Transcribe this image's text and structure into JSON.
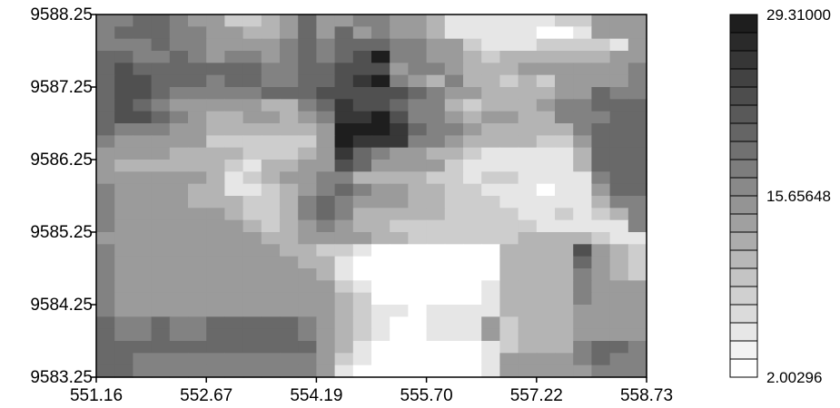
{
  "chart_data": {
    "type": "heatmap",
    "title": "",
    "xlabel": "",
    "ylabel": "",
    "x_ticks": [
      "551.16",
      "552.67",
      "554.19",
      "555.70",
      "557.22",
      "558.73"
    ],
    "y_ticks": [
      "9588.25",
      "9587.25",
      "9586.25",
      "9585.25",
      "9584.25",
      "9583.25"
    ],
    "xlim": [
      551.16,
      558.73
    ],
    "ylim": [
      9583.25,
      9588.25
    ],
    "colorbar": {
      "labels": [
        "29.31000",
        "15.65648",
        "2.00296"
      ],
      "min": 2.00296,
      "max": 29.31,
      "levels": 20,
      "colors": {
        "low": "#ffffff",
        "high": "#1e1e1e"
      }
    },
    "grid_note": "rows listed top to bottom (north to south), values are 0-9 relative intensity levels (0 = min, 9 = max)",
    "cells": [
      [
        5,
        5,
        6,
        6,
        5,
        4,
        4,
        2,
        2,
        3,
        4,
        6,
        4,
        4,
        5,
        5,
        4,
        4,
        3,
        1,
        1,
        1,
        1,
        1,
        1,
        2,
        2,
        4,
        4,
        4
      ],
      [
        5,
        6,
        6,
        6,
        5,
        5,
        4,
        4,
        3,
        3,
        4,
        6,
        4,
        6,
        4,
        5,
        4,
        4,
        3,
        1,
        1,
        1,
        1,
        1,
        0,
        0,
        1,
        4,
        4,
        4
      ],
      [
        5,
        5,
        5,
        6,
        5,
        5,
        4,
        4,
        4,
        4,
        5,
        6,
        5,
        6,
        6,
        6,
        5,
        5,
        4,
        4,
        2,
        1,
        1,
        1,
        2,
        2,
        2,
        2,
        1,
        4
      ],
      [
        6,
        6,
        5,
        5,
        6,
        5,
        4,
        5,
        5,
        4,
        5,
        6,
        5,
        6,
        7,
        9,
        5,
        5,
        4,
        4,
        3,
        2,
        3,
        3,
        3,
        3,
        3,
        3,
        4,
        4
      ],
      [
        6,
        7,
        6,
        6,
        6,
        6,
        6,
        6,
        6,
        5,
        5,
        6,
        6,
        7,
        7,
        7,
        4,
        5,
        5,
        4,
        3,
        3,
        3,
        4,
        4,
        4,
        4,
        4,
        4,
        5
      ],
      [
        6,
        7,
        7,
        6,
        6,
        6,
        5,
        6,
        6,
        5,
        5,
        6,
        6,
        7,
        8,
        9,
        5,
        4,
        3,
        5,
        3,
        3,
        2,
        3,
        2,
        4,
        4,
        4,
        4,
        5
      ],
      [
        6,
        7,
        7,
        6,
        5,
        5,
        5,
        5,
        5,
        6,
        6,
        6,
        7,
        7,
        7,
        7,
        7,
        6,
        5,
        4,
        4,
        3,
        3,
        3,
        3,
        4,
        4,
        6,
        5,
        5
      ],
      [
        6,
        7,
        6,
        5,
        4,
        4,
        4,
        4,
        4,
        3,
        3,
        5,
        6,
        8,
        7,
        7,
        6,
        5,
        5,
        3,
        2,
        3,
        3,
        3,
        4,
        5,
        5,
        6,
        6,
        6
      ],
      [
        6,
        7,
        7,
        6,
        5,
        4,
        3,
        3,
        4,
        4,
        3,
        4,
        5,
        8,
        8,
        9,
        7,
        5,
        5,
        4,
        3,
        4,
        4,
        3,
        3,
        5,
        5,
        5,
        6,
        6
      ],
      [
        6,
        5,
        5,
        5,
        4,
        4,
        3,
        3,
        3,
        3,
        3,
        3,
        4,
        9,
        9,
        9,
        8,
        6,
        5,
        5,
        4,
        3,
        3,
        3,
        3,
        3,
        5,
        6,
        6,
        6
      ],
      [
        5,
        4,
        4,
        4,
        4,
        4,
        2,
        2,
        2,
        2,
        2,
        2,
        4,
        9,
        8,
        8,
        8,
        5,
        5,
        4,
        3,
        3,
        3,
        3,
        2,
        2,
        4,
        6,
        6,
        6
      ],
      [
        4,
        4,
        4,
        4,
        3,
        3,
        3,
        3,
        2,
        2,
        2,
        3,
        4,
        8,
        6,
        5,
        4,
        4,
        3,
        3,
        2,
        1,
        1,
        1,
        1,
        1,
        3,
        6,
        6,
        6
      ],
      [
        4,
        3,
        3,
        3,
        3,
        3,
        3,
        2,
        1,
        3,
        3,
        4,
        4,
        7,
        6,
        4,
        4,
        4,
        4,
        2,
        1,
        1,
        1,
        1,
        1,
        1,
        3,
        6,
        6,
        6
      ],
      [
        4,
        4,
        4,
        4,
        4,
        4,
        3,
        1,
        2,
        3,
        4,
        4,
        5,
        5,
        3,
        3,
        3,
        3,
        2,
        2,
        1,
        2,
        2,
        1,
        1,
        1,
        1,
        5,
        6,
        6
      ],
      [
        5,
        4,
        4,
        4,
        4,
        3,
        3,
        1,
        1,
        2,
        3,
        4,
        5,
        6,
        5,
        4,
        4,
        3,
        3,
        2,
        2,
        1,
        1,
        1,
        0,
        1,
        1,
        4,
        6,
        6
      ],
      [
        5,
        4,
        4,
        4,
        4,
        3,
        3,
        3,
        2,
        2,
        3,
        5,
        6,
        5,
        4,
        4,
        4,
        3,
        3,
        2,
        2,
        2,
        1,
        1,
        1,
        1,
        1,
        3,
        5,
        5
      ],
      [
        5,
        4,
        4,
        4,
        4,
        4,
        4,
        3,
        2,
        2,
        3,
        5,
        6,
        5,
        3,
        3,
        3,
        3,
        3,
        2,
        2,
        2,
        2,
        1,
        1,
        2,
        1,
        2,
        3,
        5
      ],
      [
        5,
        4,
        4,
        4,
        4,
        4,
        4,
        4,
        3,
        2,
        3,
        4,
        5,
        4,
        3,
        3,
        2,
        2,
        2,
        2,
        2,
        2,
        2,
        2,
        1,
        1,
        1,
        1,
        1,
        5
      ],
      [
        4,
        4,
        4,
        4,
        4,
        4,
        4,
        4,
        4,
        3,
        3,
        4,
        4,
        4,
        4,
        3,
        3,
        2,
        2,
        2,
        2,
        2,
        2,
        3,
        3,
        3,
        3,
        2,
        1,
        1
      ],
      [
        5,
        4,
        4,
        4,
        4,
        4,
        4,
        4,
        4,
        4,
        3,
        3,
        2,
        2,
        1,
        0,
        0,
        0,
        0,
        0,
        0,
        0,
        3,
        3,
        3,
        3,
        7,
        4,
        3,
        2
      ],
      [
        5,
        4,
        4,
        4,
        4,
        4,
        4,
        4,
        4,
        4,
        4,
        3,
        3,
        1,
        0,
        0,
        0,
        0,
        0,
        0,
        0,
        0,
        3,
        3,
        3,
        3,
        6,
        4,
        3,
        2
      ],
      [
        5,
        4,
        4,
        4,
        4,
        4,
        4,
        4,
        4,
        4,
        4,
        4,
        3,
        1,
        0,
        0,
        0,
        0,
        0,
        0,
        0,
        0,
        3,
        3,
        3,
        3,
        5,
        4,
        3,
        2
      ],
      [
        5,
        4,
        4,
        4,
        4,
        4,
        4,
        4,
        4,
        4,
        4,
        4,
        4,
        2,
        1,
        0,
        0,
        0,
        0,
        0,
        0,
        1,
        3,
        3,
        3,
        3,
        5,
        4,
        4,
        4
      ],
      [
        5,
        4,
        4,
        4,
        4,
        4,
        4,
        4,
        4,
        4,
        4,
        4,
        4,
        3,
        2,
        0,
        0,
        0,
        0,
        0,
        0,
        1,
        3,
        3,
        3,
        3,
        5,
        4,
        4,
        4
      ],
      [
        5,
        4,
        4,
        4,
        4,
        4,
        4,
        4,
        4,
        4,
        4,
        4,
        4,
        3,
        2,
        1,
        1,
        0,
        1,
        1,
        1,
        1,
        3,
        3,
        3,
        3,
        4,
        4,
        4,
        4
      ],
      [
        6,
        5,
        5,
        6,
        5,
        5,
        6,
        6,
        6,
        6,
        6,
        5,
        4,
        3,
        2,
        1,
        0,
        0,
        1,
        1,
        1,
        4,
        2,
        3,
        3,
        3,
        4,
        4,
        4,
        4
      ],
      [
        6,
        5,
        5,
        6,
        5,
        5,
        6,
        6,
        6,
        6,
        6,
        5,
        4,
        3,
        2,
        1,
        0,
        0,
        1,
        1,
        1,
        4,
        2,
        3,
        3,
        3,
        4,
        4,
        4,
        4
      ],
      [
        6,
        6,
        6,
        6,
        6,
        6,
        6,
        6,
        6,
        6,
        6,
        6,
        4,
        3,
        1,
        0,
        0,
        0,
        0,
        0,
        0,
        1,
        2,
        3,
        3,
        3,
        5,
        6,
        6,
        5
      ],
      [
        6,
        6,
        5,
        5,
        5,
        5,
        5,
        5,
        5,
        5,
        5,
        5,
        4,
        2,
        1,
        0,
        0,
        0,
        0,
        0,
        0,
        1,
        4,
        4,
        4,
        4,
        5,
        6,
        5,
        5
      ],
      [
        6,
        6,
        5,
        5,
        5,
        5,
        5,
        5,
        5,
        5,
        5,
        5,
        4,
        1,
        0,
        0,
        0,
        0,
        0,
        0,
        0,
        1,
        4,
        4,
        4,
        4,
        4,
        5,
        5,
        5
      ]
    ]
  }
}
